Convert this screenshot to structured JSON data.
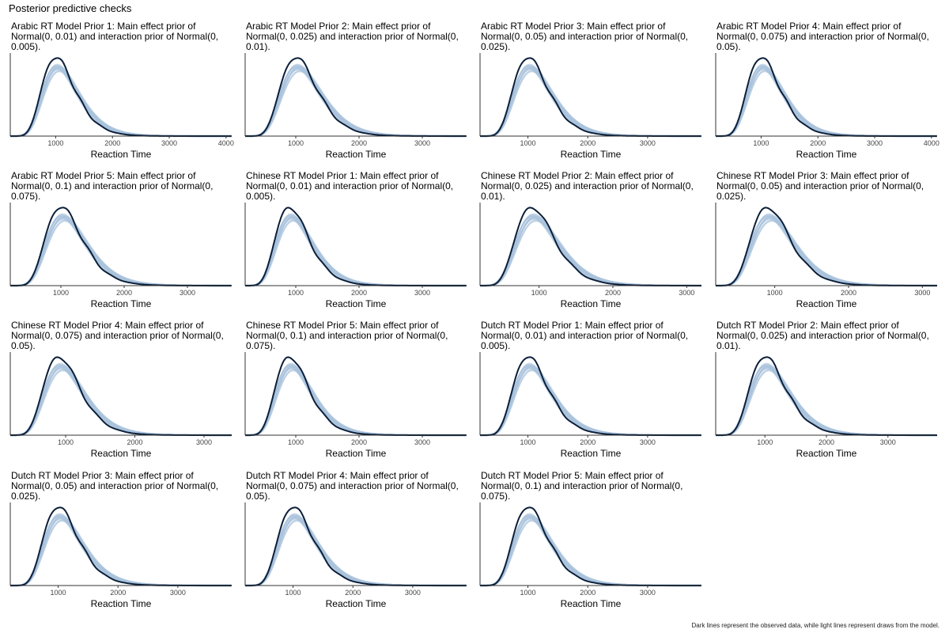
{
  "header": {
    "title": "Posterior predictive checks"
  },
  "footer": {
    "caption": "Dark lines represent the observed data, while light lines represent draws from the model."
  },
  "colors": {
    "observed": "#0b1f3a",
    "replicated": "#a9c2dd",
    "axis": "#333333"
  },
  "chart_data": [
    {
      "type": "line",
      "title": "Arabic RT Model Prior 1: Main effect prior of Normal(0, 0.01) and interaction prior of Normal(0, 0.005).",
      "xlabel": "Reaction Time",
      "ylabel": "",
      "xlim": [
        200,
        4100
      ],
      "xticks": [
        1000,
        2000,
        3000,
        4000
      ],
      "mode": 1000,
      "series": [
        {
          "name": "",
          "role": "observed"
        },
        {
          "name": "",
          "role": "replicated"
        }
      ]
    },
    {
      "type": "line",
      "title": "Arabic RT Model Prior 2: Main effect prior of Normal(0, 0.025) and interaction prior of Normal(0, 0.01).",
      "xlabel": "Reaction Time",
      "ylabel": "",
      "xlim": [
        200,
        3700
      ],
      "xticks": [
        1000,
        2000,
        3000
      ],
      "mode": 1000,
      "series": [
        {
          "name": "",
          "role": "observed"
        },
        {
          "name": "",
          "role": "replicated"
        }
      ]
    },
    {
      "type": "line",
      "title": "Arabic RT Model Prior 3: Main effect prior of Normal(0, 0.05) and interaction prior of Normal(0, 0.025).",
      "xlabel": "Reaction Time",
      "ylabel": "",
      "xlim": [
        200,
        3900
      ],
      "xticks": [
        1000,
        2000,
        3000
      ],
      "mode": 1000,
      "series": [
        {
          "name": "",
          "role": "observed"
        },
        {
          "name": "",
          "role": "replicated"
        }
      ]
    },
    {
      "type": "line",
      "title": "Arabic RT Model Prior 4: Main effect prior of Normal(0, 0.075) and interaction prior of Normal(0, 0.05).",
      "xlabel": "Reaction Time",
      "ylabel": "",
      "xlim": [
        200,
        4100
      ],
      "xticks": [
        1000,
        2000,
        3000,
        4000
      ],
      "mode": 1000,
      "series": [
        {
          "name": "",
          "role": "observed"
        },
        {
          "name": "",
          "role": "replicated"
        }
      ]
    },
    {
      "type": "line",
      "title": "Arabic RT Model Prior 5: Main effect prior of Normal(0, 0.1) and interaction prior of Normal(0, 0.075).",
      "xlabel": "Reaction Time",
      "ylabel": "",
      "xlim": [
        200,
        3700
      ],
      "xticks": [
        1000,
        2000,
        3000
      ],
      "mode": 1000,
      "series": [
        {
          "name": "",
          "role": "observed"
        },
        {
          "name": "",
          "role": "replicated"
        }
      ]
    },
    {
      "type": "line",
      "title": "Chinese RT Model Prior 1: Main effect prior of Normal(0, 0.01) and interaction prior of Normal(0, 0.005).",
      "xlabel": "Reaction Time",
      "ylabel": "",
      "xlim": [
        200,
        3700
      ],
      "xticks": [
        1000,
        2000,
        3000
      ],
      "mode": 900,
      "series": [
        {
          "name": "",
          "role": "observed"
        },
        {
          "name": "",
          "role": "replicated"
        }
      ]
    },
    {
      "type": "line",
      "title": "Chinese RT Model Prior 2: Main effect prior of Normal(0, 0.025) and interaction prior of Normal(0, 0.01).",
      "xlabel": "Reaction Time",
      "ylabel": "",
      "xlim": [
        200,
        3200
      ],
      "xticks": [
        1000,
        2000,
        3000
      ],
      "mode": 900,
      "series": [
        {
          "name": "",
          "role": "observed"
        },
        {
          "name": "",
          "role": "replicated"
        }
      ]
    },
    {
      "type": "line",
      "title": "Chinese RT Model Prior 3: Main effect prior of Normal(0, 0.05) and interaction prior of Normal(0, 0.025).",
      "xlabel": "Reaction Time",
      "ylabel": "",
      "xlim": [
        200,
        3200
      ],
      "xticks": [
        1000,
        2000,
        3000
      ],
      "mode": 900,
      "series": [
        {
          "name": "",
          "role": "observed"
        },
        {
          "name": "",
          "role": "replicated"
        }
      ]
    },
    {
      "type": "line",
      "title": "Chinese RT Model Prior 4: Main effect prior of Normal(0, 0.075) and interaction prior of Normal(0, 0.05).",
      "xlabel": "Reaction Time",
      "ylabel": "",
      "xlim": [
        200,
        3400
      ],
      "xticks": [
        1000,
        2000,
        3000
      ],
      "mode": 900,
      "series": [
        {
          "name": "",
          "role": "observed"
        },
        {
          "name": "",
          "role": "replicated"
        }
      ]
    },
    {
      "type": "line",
      "title": "Chinese RT Model Prior 5: Main effect prior of Normal(0, 0.1) and interaction prior of Normal(0, 0.075).",
      "xlabel": "Reaction Time",
      "ylabel": "",
      "xlim": [
        200,
        3700
      ],
      "xticks": [
        1000,
        2000,
        3000
      ],
      "mode": 900,
      "series": [
        {
          "name": "",
          "role": "observed"
        },
        {
          "name": "",
          "role": "replicated"
        }
      ]
    },
    {
      "type": "line",
      "title": "Dutch RT Model Prior 1: Main effect prior of Normal(0, 0.01) and interaction prior of Normal(0, 0.005).",
      "xlabel": "Reaction Time",
      "ylabel": "",
      "xlim": [
        200,
        3900
      ],
      "xticks": [
        1000,
        2000,
        3000
      ],
      "mode": 1000,
      "series": [
        {
          "name": "",
          "role": "observed"
        },
        {
          "name": "",
          "role": "replicated"
        }
      ]
    },
    {
      "type": "line",
      "title": "Dutch RT Model Prior 2: Main effect prior of Normal(0, 0.025) and interaction prior of Normal(0, 0.01).",
      "xlabel": "Reaction Time",
      "ylabel": "",
      "xlim": [
        200,
        3800
      ],
      "xticks": [
        1000,
        2000,
        3000
      ],
      "mode": 1000,
      "series": [
        {
          "name": "",
          "role": "observed"
        },
        {
          "name": "",
          "role": "replicated"
        }
      ]
    },
    {
      "type": "line",
      "title": "Dutch RT Model Prior 3: Main effect prior of Normal(0, 0.05) and interaction prior of Normal(0, 0.025).",
      "xlabel": "Reaction Time",
      "ylabel": "",
      "xlim": [
        200,
        3900
      ],
      "xticks": [
        1000,
        2000,
        3000
      ],
      "mode": 1000,
      "series": [
        {
          "name": "",
          "role": "observed"
        },
        {
          "name": "",
          "role": "replicated"
        }
      ]
    },
    {
      "type": "line",
      "title": "Dutch RT Model Prior 4: Main effect prior of Normal(0, 0.075) and interaction prior of Normal(0, 0.05).",
      "xlabel": "Reaction Time",
      "ylabel": "",
      "xlim": [
        200,
        3900
      ],
      "xticks": [
        1000,
        2000,
        3000
      ],
      "mode": 1000,
      "series": [
        {
          "name": "",
          "role": "observed"
        },
        {
          "name": "",
          "role": "replicated"
        }
      ]
    },
    {
      "type": "line",
      "title": "Dutch RT Model Prior 5: Main effect prior of Normal(0, 0.1) and interaction prior of Normal(0, 0.075).",
      "xlabel": "Reaction Time",
      "ylabel": "",
      "xlim": [
        200,
        3900
      ],
      "xticks": [
        1000,
        2000,
        3000
      ],
      "mode": 1000,
      "series": [
        {
          "name": "",
          "role": "observed"
        },
        {
          "name": "",
          "role": "replicated"
        }
      ]
    }
  ]
}
